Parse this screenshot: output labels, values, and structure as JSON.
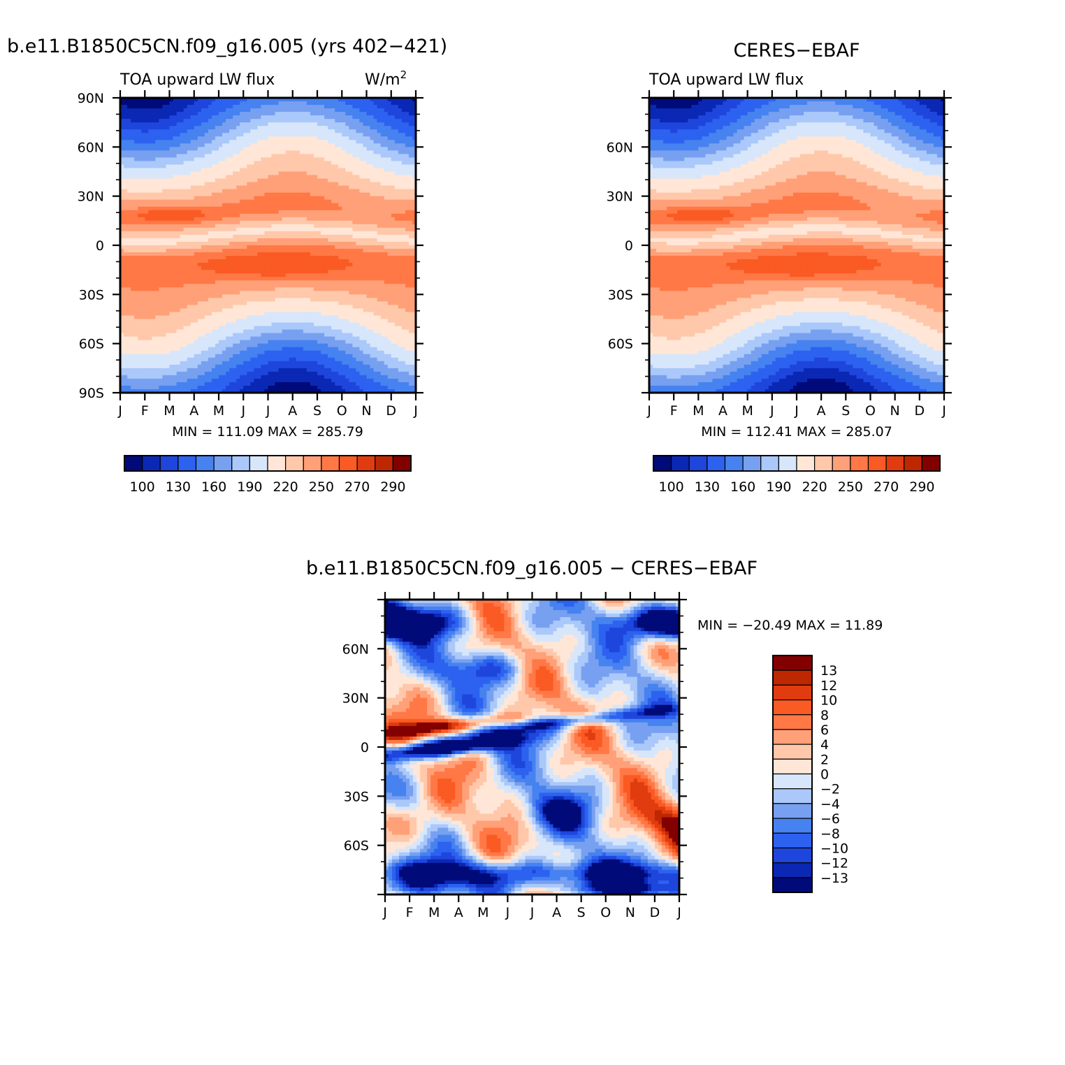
{
  "colors": {
    "flux_palette": [
      "#000a78",
      "#0a28b4",
      "#1e46dc",
      "#2d62f0",
      "#4682f0",
      "#78a0f0",
      "#aac8fa",
      "#d7e6fa",
      "#ffe6d7",
      "#ffc8aa",
      "#ffa078",
      "#ff7846",
      "#fa5a23",
      "#e13c0f",
      "#be2800",
      "#820000"
    ],
    "diff_palette": [
      "#000a78",
      "#0a28b4",
      "#1e46dc",
      "#2d62f0",
      "#4682f0",
      "#78a0f0",
      "#aac8fa",
      "#d7e6fa",
      "#ffe6d7",
      "#ffc8aa",
      "#ffa078",
      "#ff7846",
      "#fa5a23",
      "#e13c0f",
      "#be2800",
      "#820000"
    ]
  },
  "panels": {
    "model": {
      "title": "b.e11.B1850C5CN.f09_g16.005 (yrs 402−421)",
      "left_label": "TOA upward LW flux",
      "right_label": "W/m",
      "right_label_sup": "2",
      "stats": "MIN = 111.09 MAX = 285.79"
    },
    "obs": {
      "title": "CERES−EBAF",
      "left_label": "TOA upward LW flux",
      "stats": "MIN = 112.41 MAX = 285.07"
    },
    "diff": {
      "title": "b.e11.B1850C5CN.f09_g16.005 − CERES−EBAF",
      "stats": "MIN = −20.49 MAX =  11.89"
    }
  },
  "chart_data": [
    {
      "type": "heatmap",
      "name": "model",
      "title": "b.e11.B1850C5CN.f09_g16.005 (yrs 402−421)",
      "x_ticks": [
        "J",
        "F",
        "M",
        "A",
        "M",
        "J",
        "J",
        "A",
        "S",
        "O",
        "N",
        "D",
        "J"
      ],
      "y_ticks": [
        "90S",
        "60S",
        "30S",
        "0",
        "30N",
        "60N",
        "90N"
      ],
      "ylim": [
        -90,
        90
      ],
      "levels": [
        100,
        130,
        160,
        190,
        220,
        250,
        270,
        290
      ],
      "colorbar_labels": [
        "100",
        "130",
        "160",
        "190",
        "220",
        "250",
        "270",
        "290"
      ],
      "min": 111.09,
      "max": 285.79
    },
    {
      "type": "heatmap",
      "name": "obs",
      "title": "CERES−EBAF",
      "x_ticks": [
        "J",
        "F",
        "M",
        "A",
        "M",
        "J",
        "J",
        "A",
        "S",
        "O",
        "N",
        "D",
        "J"
      ],
      "y_ticks": [
        "60S",
        "30S",
        "0",
        "30N",
        "60N"
      ],
      "ylim": [
        -90,
        90
      ],
      "colorbar_labels": [
        "100",
        "130",
        "160",
        "190",
        "220",
        "250",
        "270",
        "290"
      ],
      "min": 112.41,
      "max": 285.07
    },
    {
      "type": "heatmap",
      "name": "diff",
      "title": "b.e11.B1850C5CN.f09_g16.005 − CERES−EBAF",
      "x_ticks": [
        "J",
        "F",
        "M",
        "A",
        "M",
        "J",
        "J",
        "A",
        "S",
        "O",
        "N",
        "D",
        "J"
      ],
      "y_ticks": [
        "60S",
        "30S",
        "0",
        "30N",
        "60N"
      ],
      "ylim": [
        -90,
        90
      ],
      "colorbar_labels": [
        "13",
        "12",
        "10",
        "8",
        "6",
        "4",
        "2",
        "0",
        "−2",
        "−4",
        "−6",
        "−8",
        "−10",
        "−12",
        "−13"
      ],
      "min": -20.49,
      "max": 11.89
    }
  ]
}
